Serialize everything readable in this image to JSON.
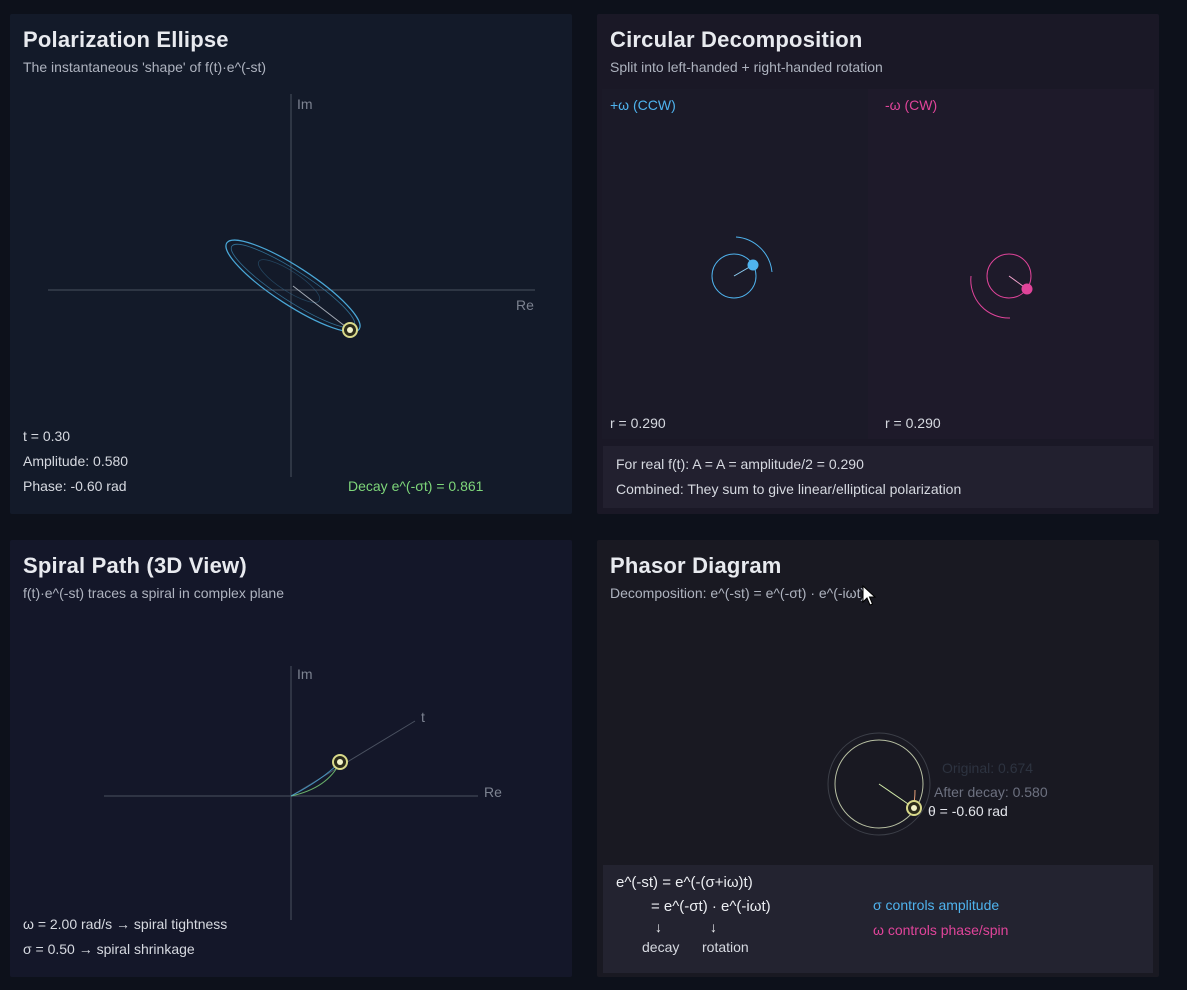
{
  "ellipse": {
    "title": "Polarization Ellipse",
    "subtitle": "The instantaneous 'shape' of f(t)·e^(-st)",
    "axis_im": "Im",
    "axis_re": "Re",
    "t_label": "t = 0.30",
    "amplitude_label": "Amplitude: 0.580",
    "phase_label": "Phase: -0.60 rad",
    "decay_label": "Decay e^(-σt) = 0.861",
    "colors": {
      "ellipse": "#4aa8d8",
      "marker": "#d8d98a",
      "decay_text": "#7ed67a"
    }
  },
  "circular": {
    "title": "Circular Decomposition",
    "subtitle": "Split into left-handed + right-handed rotation",
    "left_label": "+ω (CCW)",
    "right_label": "-ω (CW)",
    "left_r": "r = 0.290",
    "right_r": "r = 0.290",
    "info_line1": "For real f(t): A = A = amplitude/2 = 0.290",
    "info_line2": "Combined: They sum to give linear/elliptical polarization",
    "colors": {
      "ccw": "#4fb3ee",
      "cw": "#e0449a"
    }
  },
  "spiral": {
    "title": "Spiral Path (3D View)",
    "subtitle": "f(t)·e^(-st) traces a spiral in complex plane",
    "axis_im": "Im",
    "axis_re": "Re",
    "axis_t": "t",
    "omega_label": "ω = 2.00 rad/s → spiral tightness",
    "sigma_label": "σ = 0.50 → spiral shrinkage"
  },
  "phasor": {
    "title": "Phasor Diagram",
    "subtitle": "Decomposition: e^(-st) = e^(-σt) · e^(-iωt)",
    "original_label": "Original: 0.674",
    "after_decay_label": "After decay: 0.580",
    "theta_label": "θ = -0.60 rad",
    "eq_line1": "e^(-st) = e^(-(σ+iω)t)",
    "eq_line2": "= e^(-σt) · e^(-iωt)",
    "arrow": "↓",
    "decay_word": "decay",
    "rotation_word": "rotation",
    "sigma_note": "σ controls amplitude",
    "omega_note": "ω controls phase/spin",
    "colors": {
      "sigma_note": "#4fb3ee",
      "omega_note": "#e0449a"
    }
  }
}
